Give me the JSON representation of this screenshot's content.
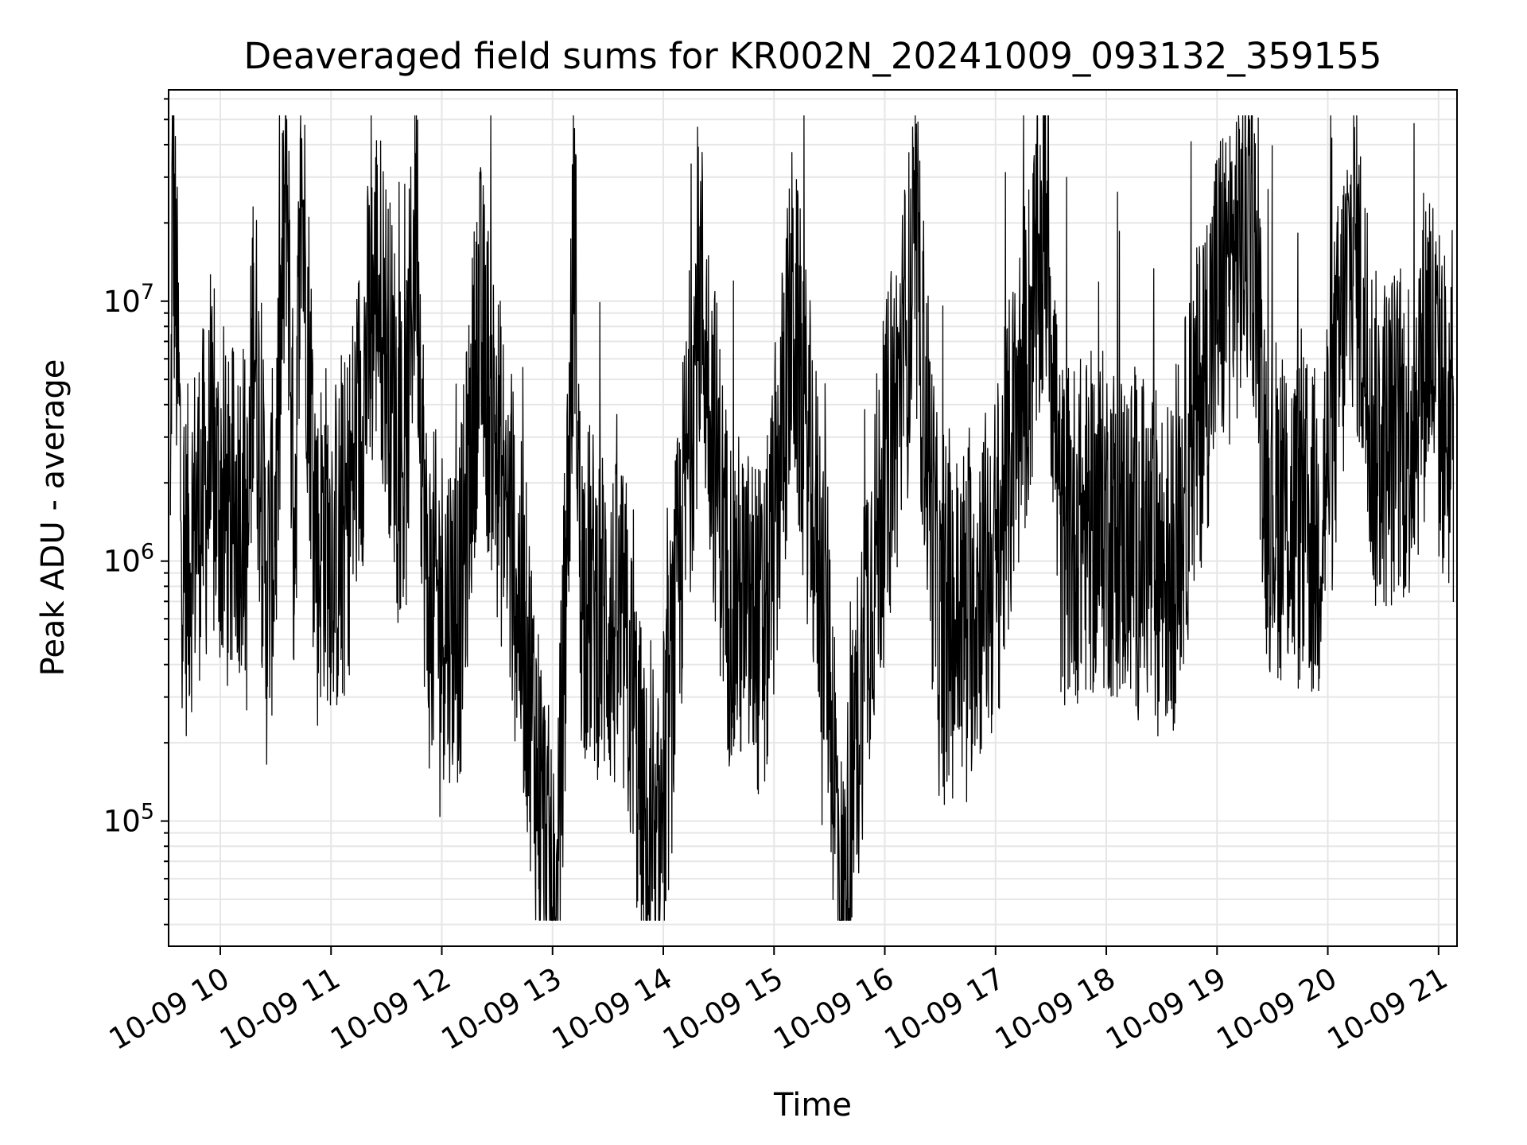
{
  "chart_data": {
    "type": "line",
    "title": "Deaveraged field sums for KR002N_20241009_093132_359155",
    "xlabel": "Time",
    "ylabel": "Peak ADU - average",
    "y_scale": "log",
    "grid": true,
    "grid_minor": true,
    "line_color": "#000000",
    "grid_color": "#e6e6e6",
    "xlim": [
      "2024-10-09 09:32",
      "2024-10-09 21:10"
    ],
    "ylim": [
      33000,
      65000000
    ],
    "x_ticks": [
      {
        "value": "2024-10-09 10:00",
        "label": "10-09 10"
      },
      {
        "value": "2024-10-09 11:00",
        "label": "10-09 11"
      },
      {
        "value": "2024-10-09 12:00",
        "label": "10-09 12"
      },
      {
        "value": "2024-10-09 13:00",
        "label": "10-09 13"
      },
      {
        "value": "2024-10-09 14:00",
        "label": "10-09 14"
      },
      {
        "value": "2024-10-09 15:00",
        "label": "10-09 15"
      },
      {
        "value": "2024-10-09 16:00",
        "label": "10-09 16"
      },
      {
        "value": "2024-10-09 17:00",
        "label": "10-09 17"
      },
      {
        "value": "2024-10-09 18:00",
        "label": "10-09 18"
      },
      {
        "value": "2024-10-09 19:00",
        "label": "10-09 19"
      },
      {
        "value": "2024-10-09 20:00",
        "label": "10-09 20"
      },
      {
        "value": "2024-10-09 21:00",
        "label": "10-09 21"
      }
    ],
    "y_ticks": [
      {
        "value": 100000,
        "base": "10",
        "exp": "5"
      },
      {
        "value": 1000000,
        "base": "10",
        "exp": "6"
      },
      {
        "value": 10000000,
        "base": "10",
        "exp": "7"
      }
    ],
    "series": [
      {
        "x": [
          "2024-10-09 09:33",
          "2024-10-09 09:34",
          "2024-10-09 09:40",
          "2024-10-09 09:47",
          "2024-10-09 09:55",
          "2024-10-09 10:05",
          "2024-10-09 10:12",
          "2024-10-09 10:15",
          "2024-10-09 10:18",
          "2024-10-09 10:25",
          "2024-10-09 10:30",
          "2024-10-09 10:36",
          "2024-10-09 10:40",
          "2024-10-09 10:44",
          "2024-10-09 10:53",
          "2024-10-09 10:55",
          "2024-10-09 11:05",
          "2024-10-09 11:10",
          "2024-10-09 11:25",
          "2024-10-09 11:40",
          "2024-10-09 11:46",
          "2024-10-09 11:50",
          "2024-10-09 11:52",
          "2024-10-09 12:10",
          "2024-10-09 12:20",
          "2024-10-09 12:45",
          "2024-10-09 13:02",
          "2024-10-09 13:12",
          "2024-10-09 13:15",
          "2024-10-09 13:40",
          "2024-10-09 13:55",
          "2024-10-09 14:20",
          "2024-10-09 14:35",
          "2024-10-09 14:55",
          "2024-10-09 15:10",
          "2024-10-09 15:30",
          "2024-10-09 15:37",
          "2024-10-09 15:50",
          "2024-10-09 16:17",
          "2024-10-09 16:30",
          "2024-10-09 16:48",
          "2024-10-09 17:00",
          "2024-10-09 17:28",
          "2024-10-09 17:35",
          "2024-10-09 18:00",
          "2024-10-09 18:35",
          "2024-10-09 19:00",
          "2024-10-09 19:19",
          "2024-10-09 19:27",
          "2024-10-09 19:55",
          "2024-10-09 20:14",
          "2024-10-09 20:25",
          "2024-10-09 20:45",
          "2024-10-09 20:55",
          "2024-10-09 21:00",
          "2024-10-09 21:08"
        ],
        "y": [
          1500000,
          45000000,
          1200000,
          2100000,
          3000000,
          1800000,
          2600000,
          1400000,
          14000000,
          1000000,
          2200000,
          50000000,
          1600000,
          40000000,
          1300000,
          2000000,
          1500000,
          2400000,
          18000000,
          3000000,
          37000000,
          2800000,
          1000000,
          900000,
          12000000,
          700000,
          43000,
          27000000,
          1200000,
          650000,
          55000,
          16000000,
          1100000,
          700000,
          13000000,
          600000,
          52000,
          900000,
          19000000,
          700000,
          1000000,
          1400000,
          29000000,
          1800000,
          2000000,
          1300000,
          14000000,
          31000000,
          2500000,
          1700000,
          26000000,
          4000000,
          4500000,
          12000000,
          6000000,
          4200000
        ]
      }
    ]
  }
}
